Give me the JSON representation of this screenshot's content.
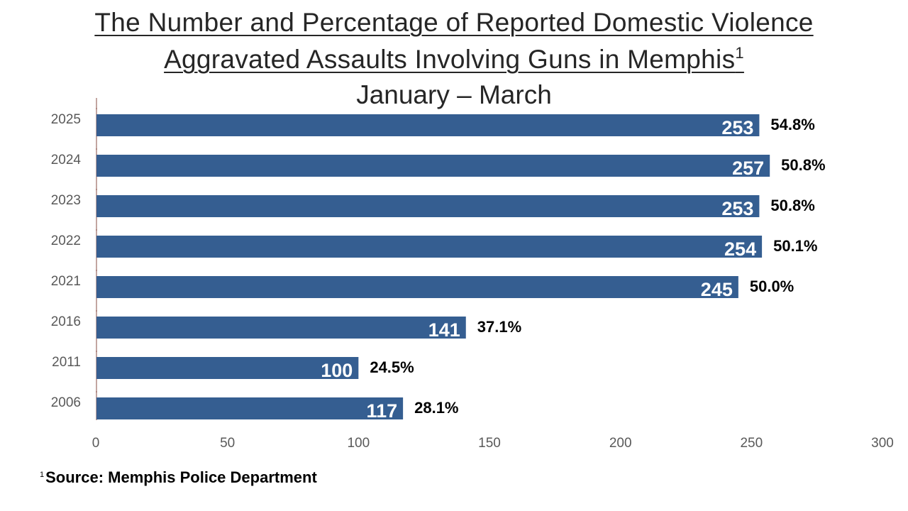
{
  "title": {
    "line1": "The Number and Percentage of Reported Domestic Violence",
    "line2": "Aggravated Assaults Involving Guns in Memphis",
    "line2_sup": "1",
    "subtitle": "January – March"
  },
  "footnote": {
    "marker": "1",
    "text": "Source:  Memphis Police Department"
  },
  "colors": {
    "bar": "#355E91",
    "bar_label": "#ffffff",
    "pct_label": "#000000",
    "axis_text": "#595959",
    "axis_line": "#9B6B63"
  },
  "chart_data": {
    "type": "bar",
    "orientation": "horizontal",
    "categories": [
      "2025",
      "2024",
      "2023",
      "2022",
      "2021",
      "2016",
      "2011",
      "2006"
    ],
    "values": [
      253,
      257,
      253,
      254,
      245,
      141,
      100,
      117
    ],
    "percent_labels": [
      "54.8%",
      "50.8%",
      "50.8%",
      "50.1%",
      "50.0%",
      "37.1%",
      "24.5%",
      "28.1%"
    ],
    "xlim": [
      0,
      300
    ],
    "xticks": [
      0,
      50,
      100,
      150,
      200,
      250,
      300
    ],
    "grid": false,
    "legend": "none"
  }
}
